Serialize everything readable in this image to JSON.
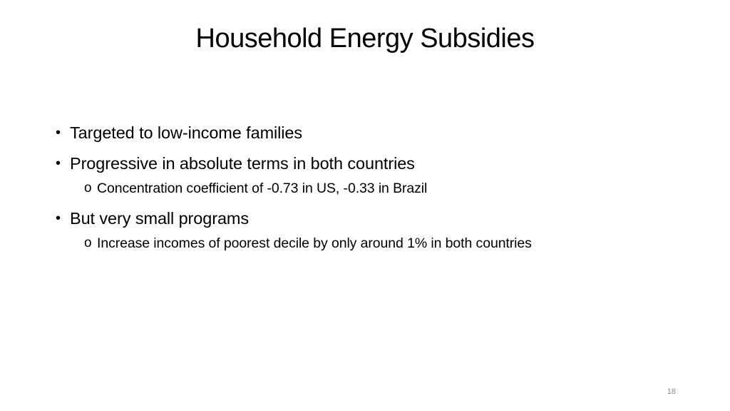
{
  "slide": {
    "title": "Household Energy Subsidies",
    "bullets": [
      {
        "marker": "•",
        "text": "Targeted to low-income families"
      },
      {
        "marker": "•",
        "text": "Progressive in absolute terms in both countries",
        "sub": {
          "marker": "o",
          "text": "Concentration coefficient of -0.73 in US, -0.33 in Brazil"
        }
      },
      {
        "marker": "•",
        "text": "But very small programs",
        "sub": {
          "marker": "o",
          "text": "Increase incomes of poorest decile by only around 1% in both countries"
        }
      }
    ],
    "page_number": "18"
  }
}
